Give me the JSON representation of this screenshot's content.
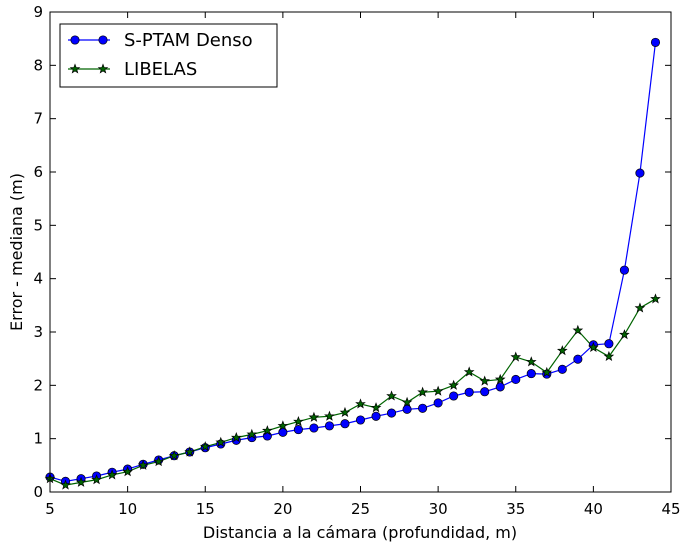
{
  "chart_data": {
    "type": "line",
    "xlabel": "Distancia a la cámara (profundidad, m)",
    "ylabel": "Error - mediana (m)",
    "xlim": [
      5,
      45
    ],
    "ylim": [
      0,
      9
    ],
    "xticks": [
      "5",
      "10",
      "15",
      "20",
      "25",
      "30",
      "35",
      "40",
      "45"
    ],
    "yticks": [
      "0",
      "1",
      "2",
      "3",
      "4",
      "5",
      "6",
      "7",
      "8",
      "9"
    ],
    "grid": false,
    "legend_position": "top-left",
    "x": [
      5,
      6,
      7,
      8,
      9,
      10,
      11,
      12,
      13,
      14,
      15,
      16,
      17,
      18,
      19,
      20,
      21,
      22,
      23,
      24,
      25,
      26,
      27,
      28,
      29,
      30,
      31,
      32,
      33,
      34,
      35,
      36,
      37,
      38,
      39,
      40,
      41,
      42,
      43,
      44
    ],
    "series": [
      {
        "name": "S-PTAM Denso",
        "color": "#0000ff",
        "marker": "circle",
        "values": [
          0.28,
          0.2,
          0.25,
          0.3,
          0.37,
          0.43,
          0.52,
          0.6,
          0.68,
          0.75,
          0.83,
          0.9,
          0.97,
          1.02,
          1.05,
          1.12,
          1.17,
          1.2,
          1.24,
          1.28,
          1.35,
          1.42,
          1.48,
          1.55,
          1.57,
          1.67,
          1.8,
          1.87,
          1.88,
          1.97,
          2.11,
          2.22,
          2.21,
          2.3,
          2.49,
          2.76,
          2.78,
          4.16,
          5.98,
          8.43
        ]
      },
      {
        "name": "LIBELAS",
        "color": "#006400",
        "marker": "star",
        "values": [
          0.25,
          0.13,
          0.18,
          0.23,
          0.32,
          0.38,
          0.5,
          0.57,
          0.68,
          0.75,
          0.85,
          0.93,
          1.02,
          1.08,
          1.15,
          1.24,
          1.32,
          1.4,
          1.42,
          1.49,
          1.65,
          1.58,
          1.8,
          1.68,
          1.87,
          1.89,
          2.0,
          2.25,
          2.08,
          2.11,
          2.53,
          2.44,
          2.24,
          2.65,
          3.03,
          2.71,
          2.54,
          2.95,
          3.45,
          3.62
        ]
      }
    ]
  }
}
